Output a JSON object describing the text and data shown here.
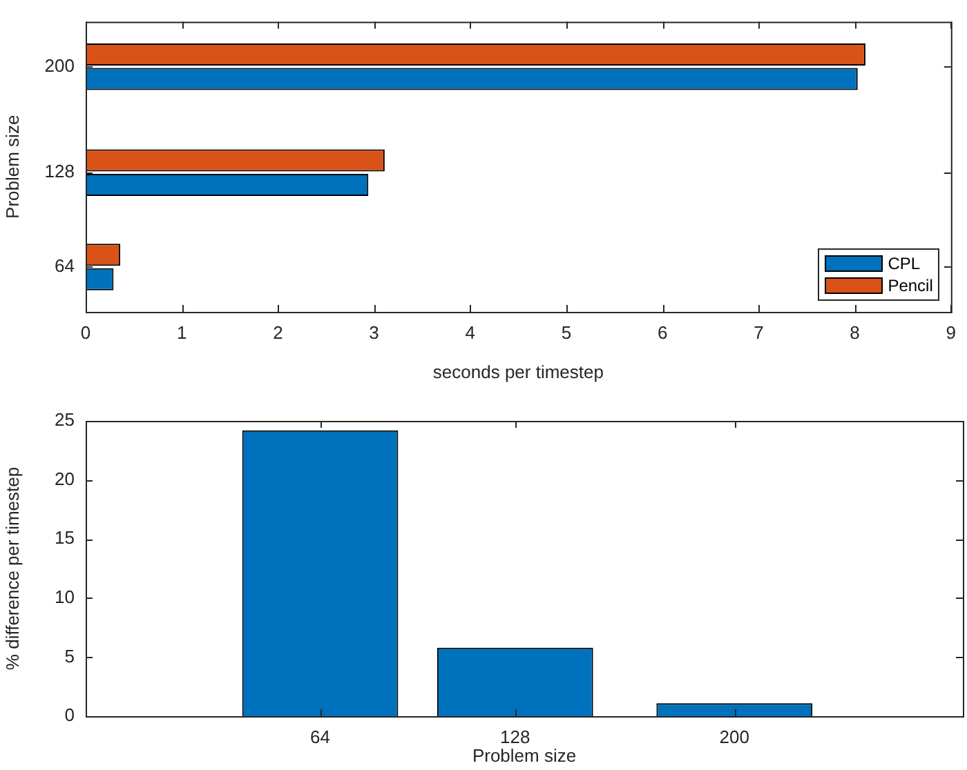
{
  "chart_data": [
    {
      "type": "bar",
      "orientation": "horizontal",
      "ylabel": "Problem size",
      "xlabel": "seconds per timestep",
      "x": [
        64,
        128,
        200
      ],
      "series": [
        {
          "name": "CPL",
          "color": "#0072bd",
          "values": [
            0.29,
            2.94,
            8.03
          ]
        },
        {
          "name": "Pencil",
          "color": "#d95319",
          "values": [
            0.36,
            3.11,
            8.11
          ]
        }
      ],
      "xlim": [
        0,
        9
      ],
      "xticks": [
        0,
        1,
        2,
        3,
        4,
        5,
        6,
        7,
        8,
        9
      ],
      "ylim": [
        33.5,
        230.5
      ],
      "yticks": [
        64,
        128,
        200
      ],
      "grid": false,
      "legend": "bottom right"
    },
    {
      "type": "bar",
      "ylabel": "% difference per timestep",
      "xlabel": "Problem size",
      "x": [
        64,
        128,
        200
      ],
      "values": [
        24.2,
        5.8,
        1.1
      ],
      "color": "#0072bd",
      "xlim": [
        -13,
        275
      ],
      "xticks": [
        64,
        128,
        200
      ],
      "ylim": [
        0,
        25
      ],
      "yticks": [
        0,
        5,
        10,
        15,
        20,
        25
      ],
      "grid": false,
      "legend": false
    }
  ]
}
